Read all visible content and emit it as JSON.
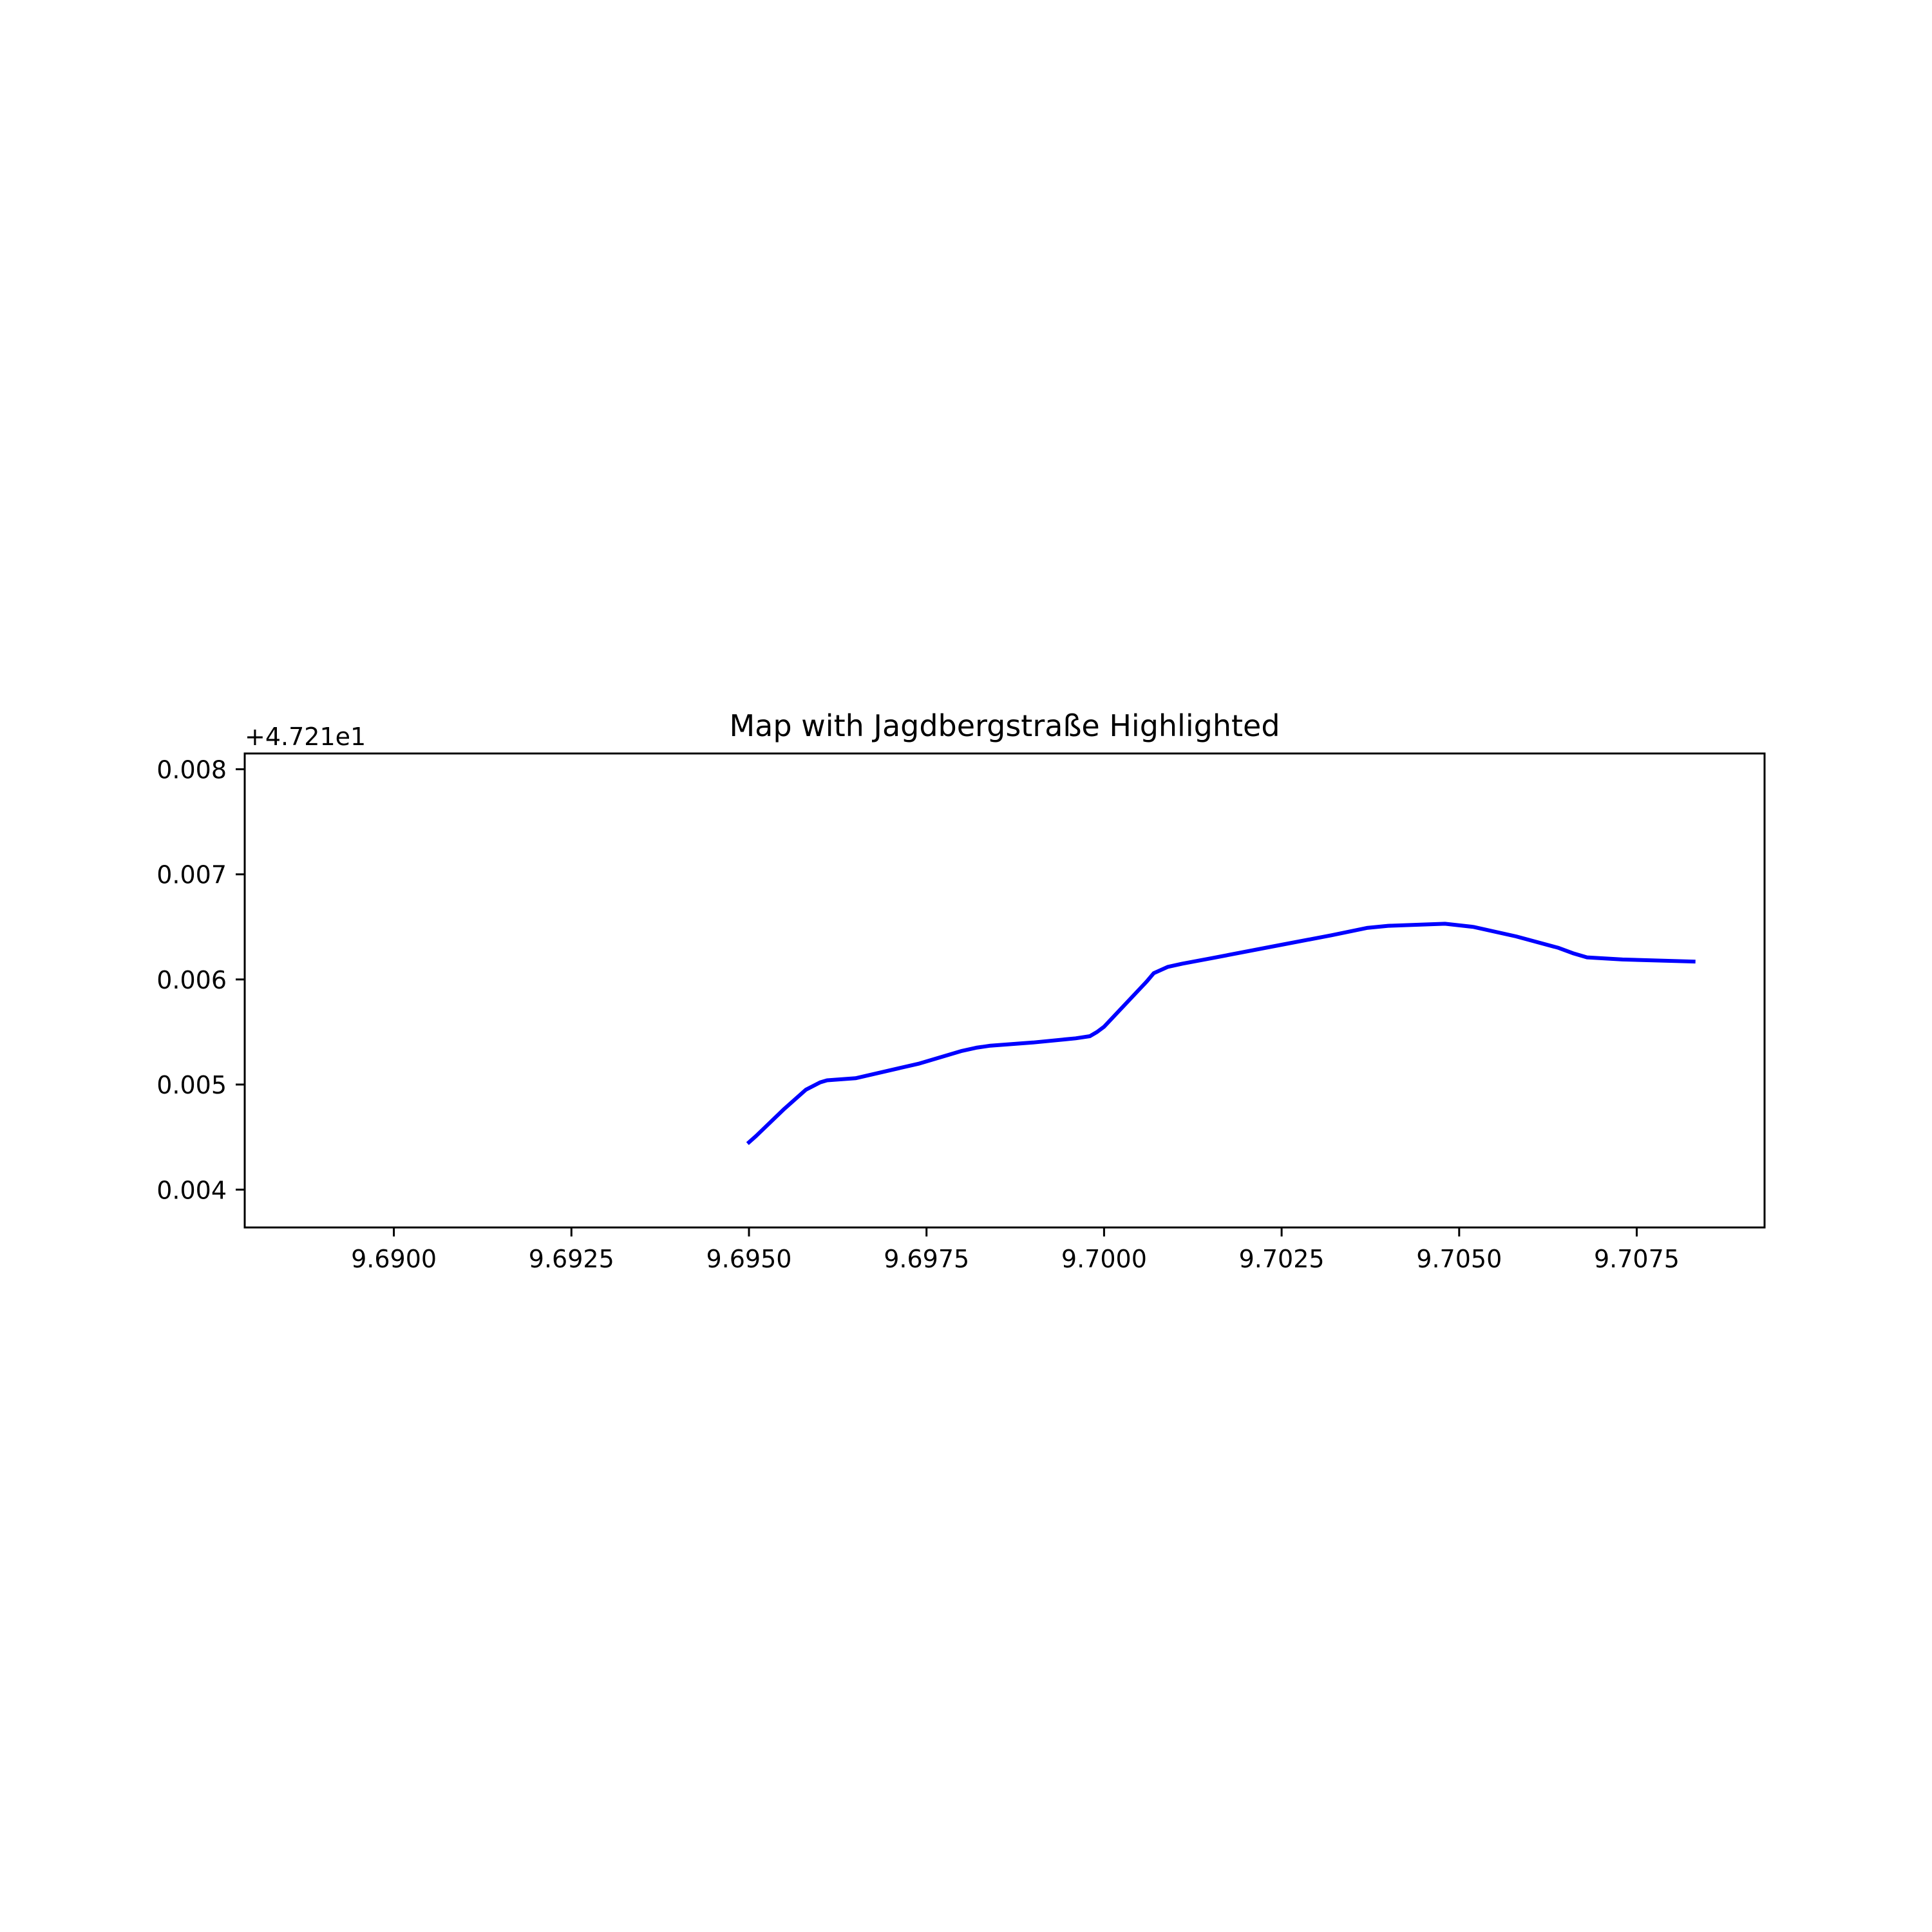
{
  "chart_data": {
    "type": "line",
    "title": "Map with Jagdbergstraße Highlighted",
    "xlabel": "",
    "ylabel": "",
    "y_offset_label": "+4.721e1",
    "xlim": [
      9.6879,
      9.7093
    ],
    "ylim": [
      0.00364,
      0.00815
    ],
    "x_ticks": [
      9.69,
      9.6925,
      9.695,
      9.6975,
      9.7,
      9.7025,
      9.705,
      9.7075
    ],
    "x_tick_labels": [
      "9.6900",
      "9.6925",
      "9.6950",
      "9.6975",
      "9.7000",
      "9.7025",
      "9.7050",
      "9.7075"
    ],
    "y_ticks": [
      0.004,
      0.005,
      0.006,
      0.007,
      0.008
    ],
    "y_tick_labels": [
      "0.004",
      "0.005",
      "0.006",
      "0.007",
      "0.008"
    ],
    "grid": false,
    "series": [
      {
        "color": "#0000ff",
        "x": [
          9.695,
          9.6951,
          9.6955,
          9.6958,
          9.696,
          9.6961,
          9.6965,
          9.6974,
          9.698,
          9.6982,
          9.6984,
          9.699,
          9.6996,
          9.6998,
          9.6999,
          9.7,
          9.7006,
          9.7007,
          9.7009,
          9.7011,
          9.7015,
          9.7025,
          9.7032,
          9.7037,
          9.704,
          9.7048,
          9.7052,
          9.7058,
          9.7064,
          9.7066,
          9.7068,
          9.7073,
          9.7083
        ],
        "y": [
          0.00445,
          0.00451,
          0.00477,
          0.00495,
          0.00502,
          0.00504,
          0.00506,
          0.0052,
          0.00532,
          0.00535,
          0.00537,
          0.0054,
          0.00544,
          0.00546,
          0.0055,
          0.00555,
          0.00598,
          0.00606,
          0.00612,
          0.00615,
          0.0062,
          0.00633,
          0.00642,
          0.00649,
          0.00651,
          0.00653,
          0.0065,
          0.00641,
          0.0063,
          0.00625,
          0.00621,
          0.00619,
          0.00617
        ]
      }
    ]
  }
}
